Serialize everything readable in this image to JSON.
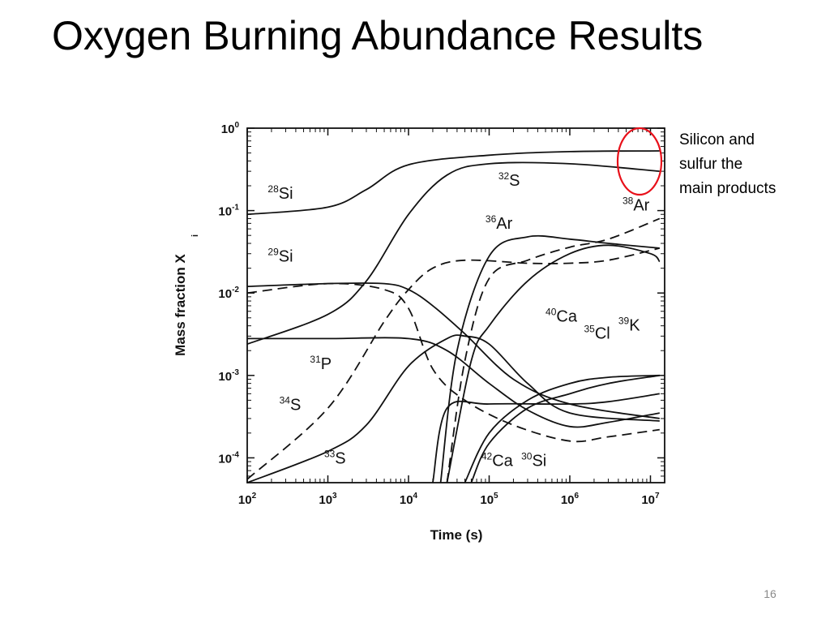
{
  "slide": {
    "title": "Oxygen Burning Abundance Results",
    "annotation_lines": [
      "Silicon and",
      "sulfur the",
      "main products"
    ],
    "page_number": "16"
  },
  "colors": {
    "highlight_circle": "#e8101a",
    "curves": "#111111",
    "background": "#ffffff"
  },
  "chart_data": {
    "type": "line",
    "xlabel": "Time  (s)",
    "ylabel": "Mass fraction X",
    "ylabel_subscript": "i",
    "x_scale": "log",
    "y_scale": "log",
    "xlim": [
      100,
      15000000
    ],
    "ylim": [
      5e-05,
      1
    ],
    "x_ticks": [
      {
        "value": 100,
        "base": "10",
        "exp": "2"
      },
      {
        "value": 1000,
        "base": "10",
        "exp": "3"
      },
      {
        "value": 10000,
        "base": "10",
        "exp": "4"
      },
      {
        "value": 100000,
        "base": "10",
        "exp": "5"
      },
      {
        "value": 1000000,
        "base": "10",
        "exp": "6"
      },
      {
        "value": 10000000,
        "base": "10",
        "exp": "7"
      }
    ],
    "y_ticks": [
      {
        "value": 1,
        "base": "10",
        "exp": "0"
      },
      {
        "value": 0.1,
        "base": "10",
        "exp": "-1"
      },
      {
        "value": 0.01,
        "base": "10",
        "exp": "-2"
      },
      {
        "value": 0.001,
        "base": "10",
        "exp": "-3"
      },
      {
        "value": 0.0001,
        "base": "10",
        "exp": "-4"
      }
    ],
    "highlight": {
      "label": "Silicon and sulfur the main products",
      "target": "28Si and 32S at late times"
    },
    "series": [
      {
        "name": "28Si",
        "mass": "28",
        "element": "Si",
        "style": "solid",
        "points": [
          [
            100,
            0.09
          ],
          [
            1000,
            0.11
          ],
          [
            3000,
            0.18
          ],
          [
            10000,
            0.36
          ],
          [
            100000,
            0.47
          ],
          [
            1000000,
            0.52
          ],
          [
            13000000,
            0.53
          ]
        ]
      },
      {
        "name": "32S",
        "mass": "32",
        "element": "S",
        "style": "solid",
        "points": [
          [
            100,
            0.0024
          ],
          [
            1000,
            0.0055
          ],
          [
            3000,
            0.014
          ],
          [
            10000,
            0.09
          ],
          [
            30000,
            0.27
          ],
          [
            100000,
            0.37
          ],
          [
            1000000,
            0.37
          ],
          [
            13000000,
            0.3
          ]
        ]
      },
      {
        "name": "38Ar",
        "mass": "38",
        "element": "Ar",
        "style": "dashed",
        "points": [
          [
            30000,
            5e-05
          ],
          [
            50000,
            0.0015
          ],
          [
            100000,
            0.015
          ],
          [
            300000,
            0.025
          ],
          [
            1000000,
            0.036
          ],
          [
            3000000,
            0.045
          ],
          [
            13000000,
            0.08
          ]
        ]
      },
      {
        "name": "36Ar",
        "mass": "36",
        "element": "Ar",
        "style": "solid",
        "points": [
          [
            25000,
            5e-05
          ],
          [
            40000,
            0.002
          ],
          [
            100000,
            0.028
          ],
          [
            300000,
            0.048
          ],
          [
            1000000,
            0.045
          ],
          [
            3000000,
            0.04
          ],
          [
            13000000,
            0.035
          ]
        ]
      },
      {
        "name": "29Si",
        "mass": "29",
        "element": "Si",
        "style": "solid",
        "points": [
          [
            100,
            0.012
          ],
          [
            1000,
            0.013
          ],
          [
            5000,
            0.013
          ],
          [
            10000,
            0.011
          ],
          [
            20000,
            0.007
          ],
          [
            50000,
            0.0032
          ],
          [
            200000,
            0.0009
          ],
          [
            1000000,
            0.00045
          ],
          [
            13000000,
            0.0003
          ]
        ]
      },
      {
        "name": "30Si",
        "mass": "30",
        "element": "Si",
        "style": "dashed",
        "points": [
          [
            100,
            0.01
          ],
          [
            1000,
            0.013
          ],
          [
            5000,
            0.011
          ],
          [
            10000,
            0.0065
          ],
          [
            20000,
            0.0012
          ],
          [
            50000,
            0.0005
          ],
          [
            200000,
            0.00025
          ],
          [
            1000000,
            0.00016
          ],
          [
            3000000,
            0.00018
          ],
          [
            13000000,
            0.00022
          ]
        ]
      },
      {
        "name": "31P",
        "mass": "31",
        "element": "P",
        "style": "solid",
        "points": [
          [
            100,
            0.0028
          ],
          [
            1000,
            0.0028
          ],
          [
            10000,
            0.0028
          ],
          [
            30000,
            0.002
          ],
          [
            100000,
            0.0008
          ],
          [
            300000,
            0.00038
          ],
          [
            1000000,
            0.00024
          ],
          [
            3000000,
            0.00027
          ],
          [
            13000000,
            0.00035
          ]
        ]
      },
      {
        "name": "34S",
        "mass": "34",
        "element": "S",
        "style": "dashed",
        "points": [
          [
            100,
            5.5e-05
          ],
          [
            1000,
            0.0004
          ],
          [
            5000,
            0.0045
          ],
          [
            10000,
            0.011
          ],
          [
            20000,
            0.02
          ],
          [
            50000,
            0.025
          ],
          [
            300000,
            0.023
          ],
          [
            1000000,
            0.023
          ],
          [
            3000000,
            0.025
          ],
          [
            13000000,
            0.035
          ]
        ]
      },
      {
        "name": "33S",
        "mass": "33",
        "element": "S",
        "style": "solid",
        "points": [
          [
            100,
            5e-05
          ],
          [
            1000,
            0.00012
          ],
          [
            3000,
            0.00025
          ],
          [
            10000,
            0.0013
          ],
          [
            30000,
            0.0028
          ],
          [
            50000,
            0.003
          ],
          [
            100000,
            0.0024
          ],
          [
            300000,
            0.0008
          ],
          [
            1000000,
            0.00035
          ],
          [
            13000000,
            0.00028
          ]
        ]
      },
      {
        "name": "40Ca",
        "mass": "40",
        "element": "Ca",
        "style": "solid",
        "points": [
          [
            30000,
            5e-05
          ],
          [
            60000,
            0.0015
          ],
          [
            100000,
            0.004
          ],
          [
            300000,
            0.014
          ],
          [
            1000000,
            0.03
          ],
          [
            3000000,
            0.038
          ],
          [
            10000000,
            0.03
          ],
          [
            13000000,
            0.024
          ]
        ]
      },
      {
        "name": "35Cl",
        "mass": "35",
        "element": "Cl",
        "style": "solid",
        "points": [
          [
            20000,
            5e-05
          ],
          [
            30000,
            0.0004
          ],
          [
            100000,
            0.00045
          ],
          [
            1000000,
            0.00045
          ],
          [
            3000000,
            0.00048
          ],
          [
            13000000,
            0.0006
          ]
        ]
      },
      {
        "name": "39K",
        "mass": "39",
        "element": "K",
        "style": "solid",
        "points": [
          [
            50000,
            5e-05
          ],
          [
            100000,
            0.0002
          ],
          [
            300000,
            0.0005
          ],
          [
            1000000,
            0.0008
          ],
          [
            3000000,
            0.00095
          ],
          [
            13000000,
            0.001
          ]
        ]
      },
      {
        "name": "42Ca",
        "mass": "42",
        "element": "Ca",
        "style": "solid",
        "points": [
          [
            60000,
            5e-05
          ],
          [
            100000,
            0.00015
          ],
          [
            300000,
            0.0004
          ],
          [
            1000000,
            0.0006
          ],
          [
            3000000,
            0.0008
          ],
          [
            13000000,
            0.001
          ]
        ]
      }
    ],
    "labels": [
      {
        "mass": "28",
        "element": "Si",
        "x": 180,
        "y": 0.14
      },
      {
        "mass": "32",
        "element": "S",
        "x": 130000,
        "y": 0.2
      },
      {
        "mass": "38",
        "element": "Ar",
        "x": 4500000,
        "y": 0.1
      },
      {
        "mass": "36",
        "element": "Ar",
        "x": 90000,
        "y": 0.06
      },
      {
        "mass": "29",
        "element": "Si",
        "x": 180,
        "y": 0.024
      },
      {
        "mass": "31",
        "element": "P",
        "x": 600,
        "y": 0.0012
      },
      {
        "mass": "40",
        "element": "Ca",
        "x": 500000,
        "y": 0.0045
      },
      {
        "mass": "35",
        "element": "Cl",
        "x": 1500000,
        "y": 0.0028
      },
      {
        "mass": "39",
        "element": "K",
        "x": 4000000,
        "y": 0.0035
      },
      {
        "mass": "34",
        "element": "S",
        "x": 250,
        "y": 0.00038
      },
      {
        "mass": "33",
        "element": "S",
        "x": 900,
        "y": 8.5e-05
      },
      {
        "mass": "42",
        "element": "Ca",
        "x": 80000,
        "y": 8e-05
      },
      {
        "mass": "30",
        "element": "Si",
        "x": 250000,
        "y": 8e-05
      }
    ]
  }
}
